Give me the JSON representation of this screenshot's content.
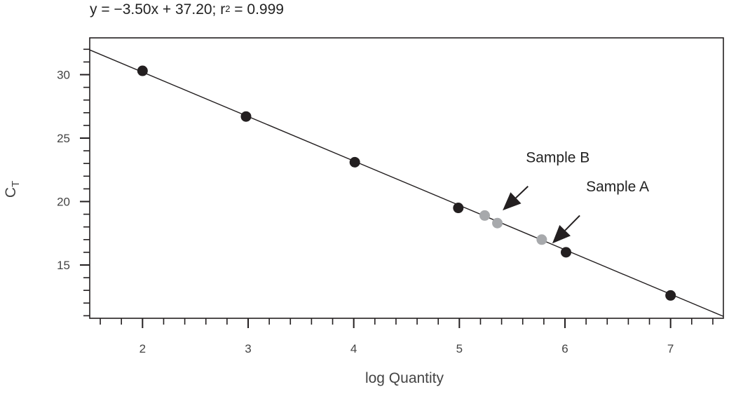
{
  "equation": {
    "prefix": "y = −3.50x + 37.20; r",
    "sup": "2",
    "suffix": " = 0.999"
  },
  "chart_data": {
    "type": "scatter",
    "title": "y = −3.50x + 37.20; r² = 0.999",
    "xlabel": "log Quantity",
    "ylabel_main": "C",
    "ylabel_sub": "T",
    "xlim": [
      1.5,
      7.5
    ],
    "ylim": [
      10.8,
      32.9
    ],
    "xticks": [
      2,
      3,
      4,
      5,
      6,
      7
    ],
    "yticks": [
      15,
      20,
      25,
      30
    ],
    "fit_line": {
      "slope": -3.5,
      "intercept": 37.2
    },
    "series": [
      {
        "name": "",
        "color": "#231f20",
        "points": [
          {
            "x": 2.0,
            "y": 30.3
          },
          {
            "x": 2.98,
            "y": 26.7
          },
          {
            "x": 4.01,
            "y": 23.1
          },
          {
            "x": 4.99,
            "y": 19.5
          },
          {
            "x": 6.01,
            "y": 16.0
          },
          {
            "x": 7.0,
            "y": 12.6
          }
        ]
      },
      {
        "name": "",
        "color": "#a7a9ac",
        "points": [
          {
            "x": 5.24,
            "y": 18.9
          },
          {
            "x": 5.36,
            "y": 18.3
          },
          {
            "x": 5.78,
            "y": 17.0
          }
        ]
      }
    ],
    "annotations": [
      {
        "text": "Sample B",
        "x": 5.63,
        "y": 23.1,
        "arrow_from": [
          5.65,
          21.2
        ],
        "arrow_to": [
          5.41,
          19.3
        ]
      },
      {
        "text": "Sample A",
        "x": 6.2,
        "y": 20.8,
        "arrow_from": [
          6.14,
          18.9
        ],
        "arrow_to": [
          5.88,
          16.7
        ]
      }
    ],
    "grid": false
  }
}
